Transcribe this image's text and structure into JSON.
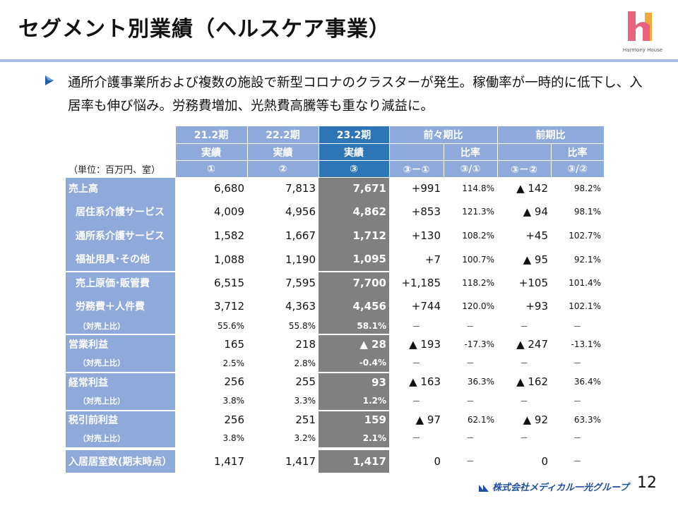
{
  "title": "セグメント別業績（ヘルスケア事業）",
  "logo": {
    "text": "Harmony House",
    "colors": {
      "pink": "#e8637d",
      "orange": "#f2a93b"
    }
  },
  "lead": "通所介護事業所および複数の施設で新型コロナのクラスターが発生。稼働率が一時的に低下し、入居率も伸び悩み。労務費増加、光熱費高騰等も重なり減益に。",
  "table": {
    "unit": "（単位：百万円、室）",
    "periods": [
      "21.2期",
      "22.2期",
      "23.2期"
    ],
    "actual": "実績",
    "comp1": "前々期比",
    "comp2": "前期比",
    "ratio": "比率",
    "markers": [
      "①",
      "②",
      "③",
      "③－①",
      "③/①",
      "③－②",
      "③/②"
    ],
    "rows": [
      {
        "label": "売上高",
        "c1": "6,680",
        "c2": "7,813",
        "c3": "7,671",
        "d1": "+991",
        "r1": "114.8%",
        "d2": "▲ 142",
        "r2": "98.2%"
      },
      {
        "label": "居住系介護サービス",
        "c1": "4,009",
        "c2": "4,956",
        "c3": "4,862",
        "d1": "+853",
        "r1": "121.3%",
        "d2": "▲ 94",
        "r2": "98.1%"
      },
      {
        "label": "通所系介護サービス",
        "c1": "1,582",
        "c2": "1,667",
        "c3": "1,712",
        "d1": "+130",
        "r1": "108.2%",
        "d2": "+45",
        "r2": "102.7%"
      },
      {
        "label": "福祉用具･その他",
        "c1": "1,088",
        "c2": "1,190",
        "c3": "1,095",
        "d1": "+7",
        "r1": "100.7%",
        "d2": "▲ 95",
        "r2": "92.1%"
      },
      {
        "label": "売上原価･販管費",
        "c1": "6,515",
        "c2": "7,595",
        "c3": "7,700",
        "d1": "+1,185",
        "r1": "118.2%",
        "d2": "+105",
        "r2": "101.4%"
      },
      {
        "label": "労務費＋人件費",
        "c1": "3,712",
        "c2": "4,363",
        "c3": "4,456",
        "d1": "+744",
        "r1": "120.0%",
        "d2": "+93",
        "r2": "102.1%"
      },
      {
        "label": "（対売上比）",
        "c1": "55.6%",
        "c2": "55.8%",
        "c3": "58.1%",
        "d1": "－",
        "r1": "－",
        "d2": "－",
        "r2": "－"
      },
      {
        "label": "営業利益",
        "c1": "165",
        "c2": "218",
        "c3": "▲ 28",
        "d1": "▲ 193",
        "r1": "-17.3%",
        "d2": "▲ 247",
        "r2": "-13.1%"
      },
      {
        "label": "（対売上比）",
        "c1": "2.5%",
        "c2": "2.8%",
        "c3": "-0.4%",
        "d1": "－",
        "r1": "－",
        "d2": "－",
        "r2": "－"
      },
      {
        "label": "経常利益",
        "c1": "256",
        "c2": "255",
        "c3": "93",
        "d1": "▲ 163",
        "r1": "36.3%",
        "d2": "▲ 162",
        "r2": "36.4%"
      },
      {
        "label": "（対売上比）",
        "c1": "3.8%",
        "c2": "3.3%",
        "c3": "1.2%",
        "d1": "－",
        "r1": "－",
        "d2": "－",
        "r2": "－"
      },
      {
        "label": "税引前利益",
        "c1": "256",
        "c2": "251",
        "c3": "159",
        "d1": "▲ 97",
        "r1": "62.1%",
        "d2": "▲ 92",
        "r2": "63.3%"
      },
      {
        "label": "（対売上比）",
        "c1": "3.8%",
        "c2": "3.2%",
        "c3": "2.1%",
        "d1": "－",
        "r1": "－",
        "d2": "－",
        "r2": "－"
      },
      {
        "label": "入居居室数(期末時点）",
        "c1": "1,417",
        "c2": "1,417",
        "c3": "1,417",
        "d1": "0",
        "r1": "－",
        "d2": "0",
        "r2": "－"
      }
    ]
  },
  "footer": {
    "company": "株式会社メディカル一光グループ",
    "page": "12"
  }
}
